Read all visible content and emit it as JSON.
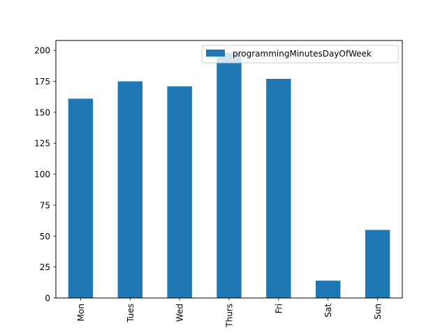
{
  "chart_data": {
    "type": "bar",
    "categories": [
      "Mon",
      "Tues",
      "Wed",
      "Thurs",
      "Fri",
      "Sat",
      "Sun"
    ],
    "series": [
      {
        "name": "programmingMinutesDayOfWeek",
        "values": [
          161,
          175,
          171,
          198,
          177,
          14,
          55
        ],
        "color": "#1f77b4"
      }
    ],
    "title": "",
    "xlabel": "",
    "ylabel": "",
    "ylim": [
      0,
      208
    ],
    "yticks": [
      0,
      25,
      50,
      75,
      100,
      125,
      150,
      175,
      200
    ],
    "grid": false,
    "legend_position": "top-right"
  }
}
